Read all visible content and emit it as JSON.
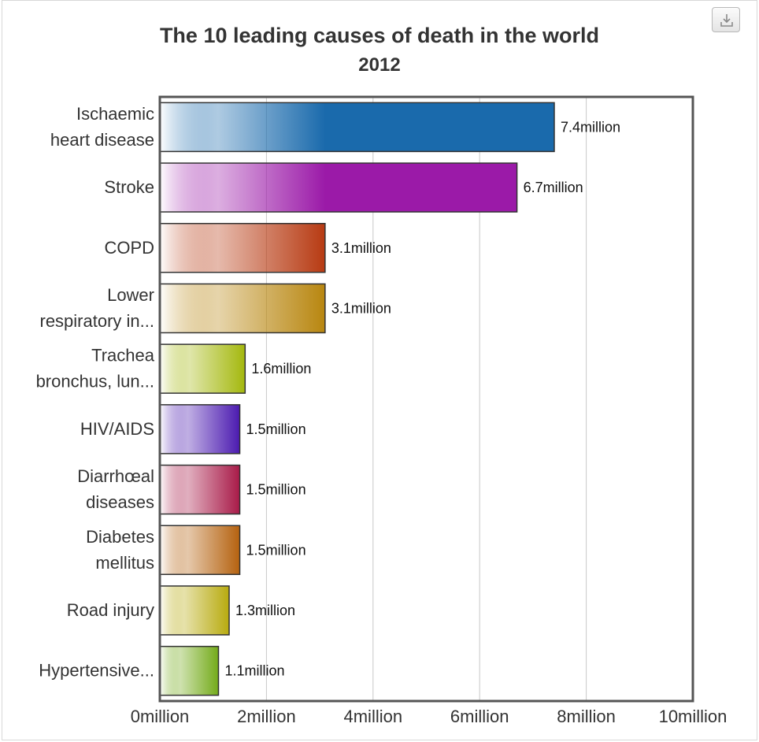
{
  "chart_data": {
    "type": "bar",
    "orientation": "horizontal",
    "title": "The 10 leading causes of death in the world",
    "subtitle": "2012",
    "categories": [
      [
        "Ischaemic",
        "heart disease"
      ],
      [
        "Stroke"
      ],
      [
        "COPD"
      ],
      [
        "Lower",
        "respiratory in..."
      ],
      [
        "Trachea",
        "bronchus, lun..."
      ],
      [
        "HIV/AIDS"
      ],
      [
        "Diarrhœal",
        "diseases"
      ],
      [
        "Diabetes",
        "mellitus"
      ],
      [
        "Road injury"
      ],
      [
        "Hypertensive..."
      ]
    ],
    "values": [
      7.4,
      6.7,
      3.1,
      3.1,
      1.6,
      1.5,
      1.5,
      1.5,
      1.3,
      1.1
    ],
    "data_labels": [
      "7.4million",
      "6.7million",
      "3.1million",
      "3.1million",
      "1.6million",
      "1.5million",
      "1.5million",
      "1.5million",
      "1.3million",
      "1.1million"
    ],
    "colors": [
      "#1a6aac",
      "#9b1aa8",
      "#b73a12",
      "#b8860f",
      "#a4b80d",
      "#4b1ab0",
      "#a81a48",
      "#b5620f",
      "#b8ab0f",
      "#74ab1a"
    ],
    "xlim": [
      0,
      10
    ],
    "xticks": [
      0,
      2,
      4,
      6,
      8,
      10
    ],
    "xtick_labels": [
      "0million",
      "2million",
      "4million",
      "6million",
      "8million",
      "10million"
    ],
    "grid": true,
    "legend": "none"
  },
  "toolbar": {
    "download_icon": "download-icon"
  }
}
